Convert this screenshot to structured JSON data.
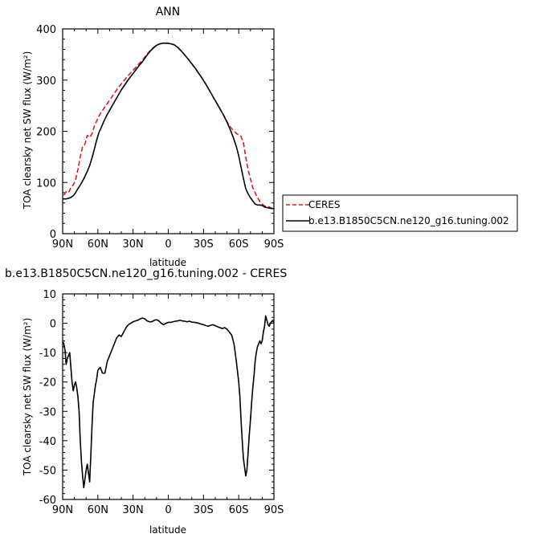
{
  "chart_data": [
    {
      "type": "line",
      "title": "ANN",
      "xlabel": "latitude",
      "ylabel": "TOA clearsky net SW flux (W/m²)",
      "xlim": [
        -90,
        90
      ],
      "ylim": [
        0,
        400
      ],
      "xticks": [
        -90,
        -60,
        -30,
        0,
        30,
        60,
        90
      ],
      "xtick_labels": [
        "90N",
        "60N",
        "30N",
        "0",
        "30S",
        "60S",
        "90S"
      ],
      "yticks": [
        0,
        100,
        200,
        300,
        400
      ],
      "ytick_labels": [
        "0",
        "100",
        "200",
        "300",
        "400"
      ],
      "grid": false,
      "legend_position": "right",
      "series": [
        {
          "name": "CERES",
          "color": "#dd1c1c",
          "style": "dashed",
          "x": [
            -89,
            -87,
            -85,
            -83,
            -81,
            -79,
            -77,
            -75,
            -73,
            -71,
            -69,
            -67,
            -65,
            -63,
            -61,
            -59,
            -57,
            -55,
            -52,
            -49,
            -46,
            -43,
            -40,
            -37,
            -34,
            -31,
            -28,
            -25,
            -22,
            -19,
            -16,
            -13,
            -10,
            -7,
            -4,
            -1,
            2,
            5,
            8,
            11,
            14,
            17,
            20,
            23,
            26,
            29,
            32,
            35,
            38,
            41,
            44,
            47,
            50,
            53,
            56,
            58,
            60,
            62,
            64,
            66,
            68,
            70,
            72,
            74,
            76,
            78,
            80,
            82,
            84,
            86,
            88,
            90
          ],
          "y": [
            75,
            82,
            80,
            90,
            95,
            105,
            125,
            150,
            170,
            175,
            192,
            188,
            195,
            210,
            220,
            230,
            238,
            244,
            254,
            264,
            274,
            284,
            293,
            301,
            309,
            317,
            324,
            332,
            339,
            348,
            356,
            363,
            368,
            371,
            372,
            372,
            371,
            369,
            364,
            357,
            349,
            341,
            332,
            323,
            313,
            303,
            292,
            280,
            268,
            256,
            244,
            232,
            219,
            208,
            200,
            196,
            193,
            190,
            178,
            150,
            125,
            107,
            90,
            80,
            70,
            63,
            58,
            54,
            53,
            52,
            50,
            48
          ]
        },
        {
          "name": "b.e13.B1850C5CN.ne120_g16.tuning.002",
          "color": "#000000",
          "style": "solid",
          "x": [
            -90,
            -87,
            -85,
            -83,
            -81,
            -79,
            -77,
            -75,
            -73,
            -71,
            -69,
            -67,
            -65,
            -63,
            -61,
            -59,
            -57,
            -55,
            -52,
            -49,
            -46,
            -43,
            -40,
            -37,
            -34,
            -31,
            -28,
            -25,
            -22,
            -19,
            -16,
            -13,
            -10,
            -7,
            -4,
            -1,
            2,
            5,
            8,
            11,
            14,
            17,
            20,
            23,
            26,
            29,
            32,
            35,
            38,
            41,
            44,
            47,
            50,
            53,
            56,
            58,
            60,
            62,
            64,
            66,
            68,
            70,
            72,
            74,
            76,
            78,
            80,
            82,
            84,
            86,
            88,
            90
          ],
          "y": [
            68,
            68,
            69,
            71,
            74,
            80,
            88,
            95,
            103,
            112,
            122,
            133,
            148,
            165,
            183,
            198,
            208,
            219,
            233,
            245,
            257,
            269,
            281,
            291,
            301,
            310,
            319,
            328,
            336,
            346,
            355,
            362,
            368,
            371,
            372,
            372,
            371,
            369,
            364,
            357,
            349,
            341,
            332,
            323,
            313,
            303,
            292,
            280,
            268,
            256,
            244,
            232,
            218,
            202,
            184,
            170,
            152,
            130,
            108,
            88,
            78,
            70,
            64,
            58,
            56,
            56,
            55,
            52,
            51,
            50,
            49,
            49
          ]
        }
      ]
    },
    {
      "type": "line",
      "title": "b.e13.B1850C5CN.ne120_g16.tuning.002 - CERES",
      "xlabel": "latitude",
      "ylabel": "TOA clearsky net SW flux (W/m²)",
      "xlim": [
        -90,
        90
      ],
      "ylim": [
        -60,
        10
      ],
      "xticks": [
        -90,
        -60,
        -30,
        0,
        30,
        60,
        90
      ],
      "xtick_labels": [
        "90N",
        "60N",
        "30N",
        "0",
        "30S",
        "60S",
        "90S"
      ],
      "yticks": [
        -60,
        -50,
        -40,
        -30,
        -20,
        -10,
        0,
        10
      ],
      "ytick_labels": [
        "-60",
        "-50",
        "-40",
        "-30",
        "-20",
        "-10",
        "0",
        "10"
      ],
      "grid": false,
      "series": [
        {
          "color": "#000000",
          "style": "solid",
          "x": [
            -90,
            -89,
            -88,
            -87,
            -86,
            -85,
            -84,
            -83,
            -82,
            -81,
            -80,
            -79,
            -78,
            -77,
            -76,
            -75,
            -74,
            -73,
            -72,
            -71,
            -70,
            -69,
            -68,
            -67,
            -66,
            -65,
            -64,
            -63,
            -62,
            -61,
            -60,
            -58,
            -56,
            -54,
            -52,
            -50,
            -48,
            -46,
            -44,
            -42,
            -40,
            -38,
            -36,
            -34,
            -32,
            -30,
            -28,
            -26,
            -24,
            -22,
            -20,
            -18,
            -16,
            -14,
            -12,
            -10,
            -8,
            -6,
            -4,
            -2,
            0,
            2,
            4,
            6,
            8,
            10,
            12,
            14,
            16,
            18,
            20,
            22,
            24,
            26,
            28,
            30,
            32,
            34,
            36,
            38,
            40,
            42,
            44,
            46,
            48,
            50,
            52,
            54,
            56,
            58,
            60,
            61,
            62,
            63,
            64,
            65,
            66,
            67,
            68,
            69,
            70,
            71,
            72,
            73,
            74,
            75,
            76,
            77,
            78,
            79,
            80,
            81,
            82,
            83,
            84,
            85,
            86,
            87,
            88,
            89,
            90
          ],
          "y": [
            -6,
            -7,
            -9,
            -14,
            -12,
            -11,
            -10,
            -15,
            -20,
            -23,
            -21,
            -20,
            -22,
            -25,
            -30,
            -40,
            -47,
            -52,
            -56,
            -53,
            -50,
            -48,
            -51,
            -54,
            -45,
            -35,
            -27,
            -24,
            -21,
            -19,
            -16,
            -15,
            -17,
            -17,
            -13,
            -11,
            -9,
            -7,
            -5,
            -4,
            -4.5,
            -3,
            -1.5,
            -0.5,
            0,
            0.5,
            0.8,
            1,
            1.5,
            1.8,
            1.5,
            0.8,
            0.5,
            0.5,
            1,
            1.2,
            0.8,
            0,
            -0.5,
            0,
            0.3,
            0.3,
            0.5,
            0.7,
            0.8,
            1,
            0.8,
            0.7,
            0.5,
            0.7,
            0.4,
            0.3,
            0.2,
            0,
            -0.3,
            -0.5,
            -0.8,
            -1,
            -0.7,
            -0.5,
            -0.8,
            -1.2,
            -1.5,
            -1.8,
            -1.5,
            -2,
            -3,
            -4,
            -7,
            -13,
            -20,
            -25,
            -33,
            -40,
            -46,
            -49,
            -52,
            -50,
            -44,
            -38,
            -33,
            -27,
            -22,
            -18,
            -13,
            -10,
            -8,
            -7,
            -6,
            -7,
            -6,
            -3,
            -1,
            2.5,
            1,
            -0.5,
            -1,
            0,
            0.5,
            1,
            0
          ]
        }
      ]
    }
  ]
}
